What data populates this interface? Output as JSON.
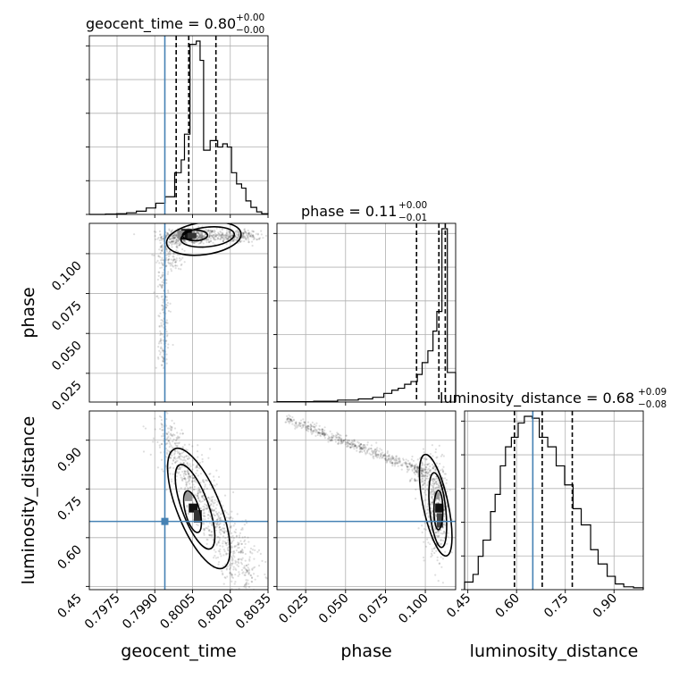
{
  "chart_data": {
    "type": "corner",
    "parameters": [
      "geocent_time",
      "phase",
      "luminosity_distance"
    ],
    "grid": true,
    "truth": {
      "geocent_time": 0.7994,
      "luminosity_distance": 0.65
    },
    "titles": {
      "geocent_time": {
        "prefix": "geocent_time = ",
        "value": "0.80",
        "plus": "+0.00",
        "minus": "−0.00"
      },
      "phase": {
        "prefix": "phase = ",
        "value": "0.11",
        "plus": "+0.00",
        "minus": "−0.01"
      },
      "luminosity_distance": {
        "prefix": "luminosity_distance = ",
        "value": "0.68",
        "plus": "+0.09",
        "minus": "−0.08"
      }
    },
    "axis_labels": {
      "geocent_time": "geocent_time",
      "phase": "phase",
      "luminosity_distance": "luminosity_distance"
    },
    "ticks": {
      "geocent_time": [
        "0.7975",
        "0.7990",
        "0.8005",
        "0.8020",
        "0.8035"
      ],
      "phase": [
        "0.025",
        "0.050",
        "0.075",
        "0.100"
      ],
      "luminosity_distance": [
        "0.45",
        "0.60",
        "0.75",
        "0.90"
      ]
    },
    "ranges": {
      "geocent_time": [
        0.7964,
        0.8035
      ],
      "phase": [
        0.007,
        0.119
      ],
      "luminosity_distance": [
        0.44,
        0.99
      ]
    },
    "histograms": {
      "geocent_time": {
        "bin_edges": [
          0.7964,
          0.79704,
          0.79748,
          0.79788,
          0.79827,
          0.79866,
          0.79904,
          0.79941,
          0.79979,
          0.80005,
          0.80018,
          0.8004,
          0.80065,
          0.8008,
          0.80094,
          0.8012,
          0.80135,
          0.8015,
          0.8017,
          0.80188,
          0.80205,
          0.80225,
          0.80245,
          0.80262,
          0.80282,
          0.80305,
          0.80325,
          0.8035
        ],
        "counts": [
          0,
          1,
          2,
          5,
          10,
          20,
          35,
          55,
          130,
          170,
          250,
          530,
          540,
          480,
          200,
          230,
          230,
          210,
          220,
          210,
          130,
          95,
          82,
          42,
          22,
          8,
          2
        ],
        "quantiles": [
          0.79985,
          0.80035,
          0.80143
        ]
      },
      "phase": {
        "bin_edges": [
          0.007,
          0.03,
          0.045,
          0.058,
          0.067,
          0.074,
          0.079,
          0.083,
          0.087,
          0.091,
          0.095,
          0.098,
          0.1016,
          0.1048,
          0.1072,
          0.1104,
          0.1138,
          0.119
        ],
        "counts": [
          1,
          2,
          5,
          8,
          12,
          22,
          30,
          35,
          45,
          52,
          70,
          100,
          130,
          180,
          230,
          440,
          75
        ],
        "quantiles": [
          0.0945,
          0.1085,
          0.1125
        ]
      },
      "luminosity_distance": {
        "bin_edges": [
          0.44,
          0.466,
          0.482,
          0.497,
          0.52,
          0.534,
          0.55,
          0.566,
          0.584,
          0.605,
          0.624,
          0.648,
          0.67,
          0.696,
          0.722,
          0.748,
          0.774,
          0.799,
          0.828,
          0.851,
          0.879,
          0.904,
          0.93,
          0.96,
          0.99
        ],
        "counts": [
          8,
          16,
          35,
          52,
          82,
          100,
          130,
          150,
          160,
          175,
          182,
          180,
          160,
          150,
          130,
          110,
          85,
          68,
          42,
          27,
          14,
          6,
          3,
          2
        ],
        "quantiles": [
          0.5935,
          0.679,
          0.7715
        ]
      }
    },
    "joint": {
      "phase_vs_geocent_time": {
        "peak": {
          "geocent_time": 0.8004,
          "phase": 0.1115
        },
        "samples_summary": "ridge along geocent_time 0.7994–0.8032 near phase 0.105–0.115, tail to phase 0.03 near geocent_time 0.7993"
      },
      "luminosity_distance_vs_geocent_time": {
        "peak": {
          "geocent_time": 0.8004,
          "luminosity_distance": 0.68
        },
        "samples_summary": "anti-correlated band from (0.7993, 0.92) to (0.8027, 0.50)"
      },
      "luminosity_distance_vs_phase": {
        "peak": {
          "phase": 0.1085,
          "luminosity_distance": 0.69
        },
        "samples_summary": "thin band from phase 0.015 at luminosity_distance 0.96 to phase 0.105 at 0.66"
      }
    }
  }
}
